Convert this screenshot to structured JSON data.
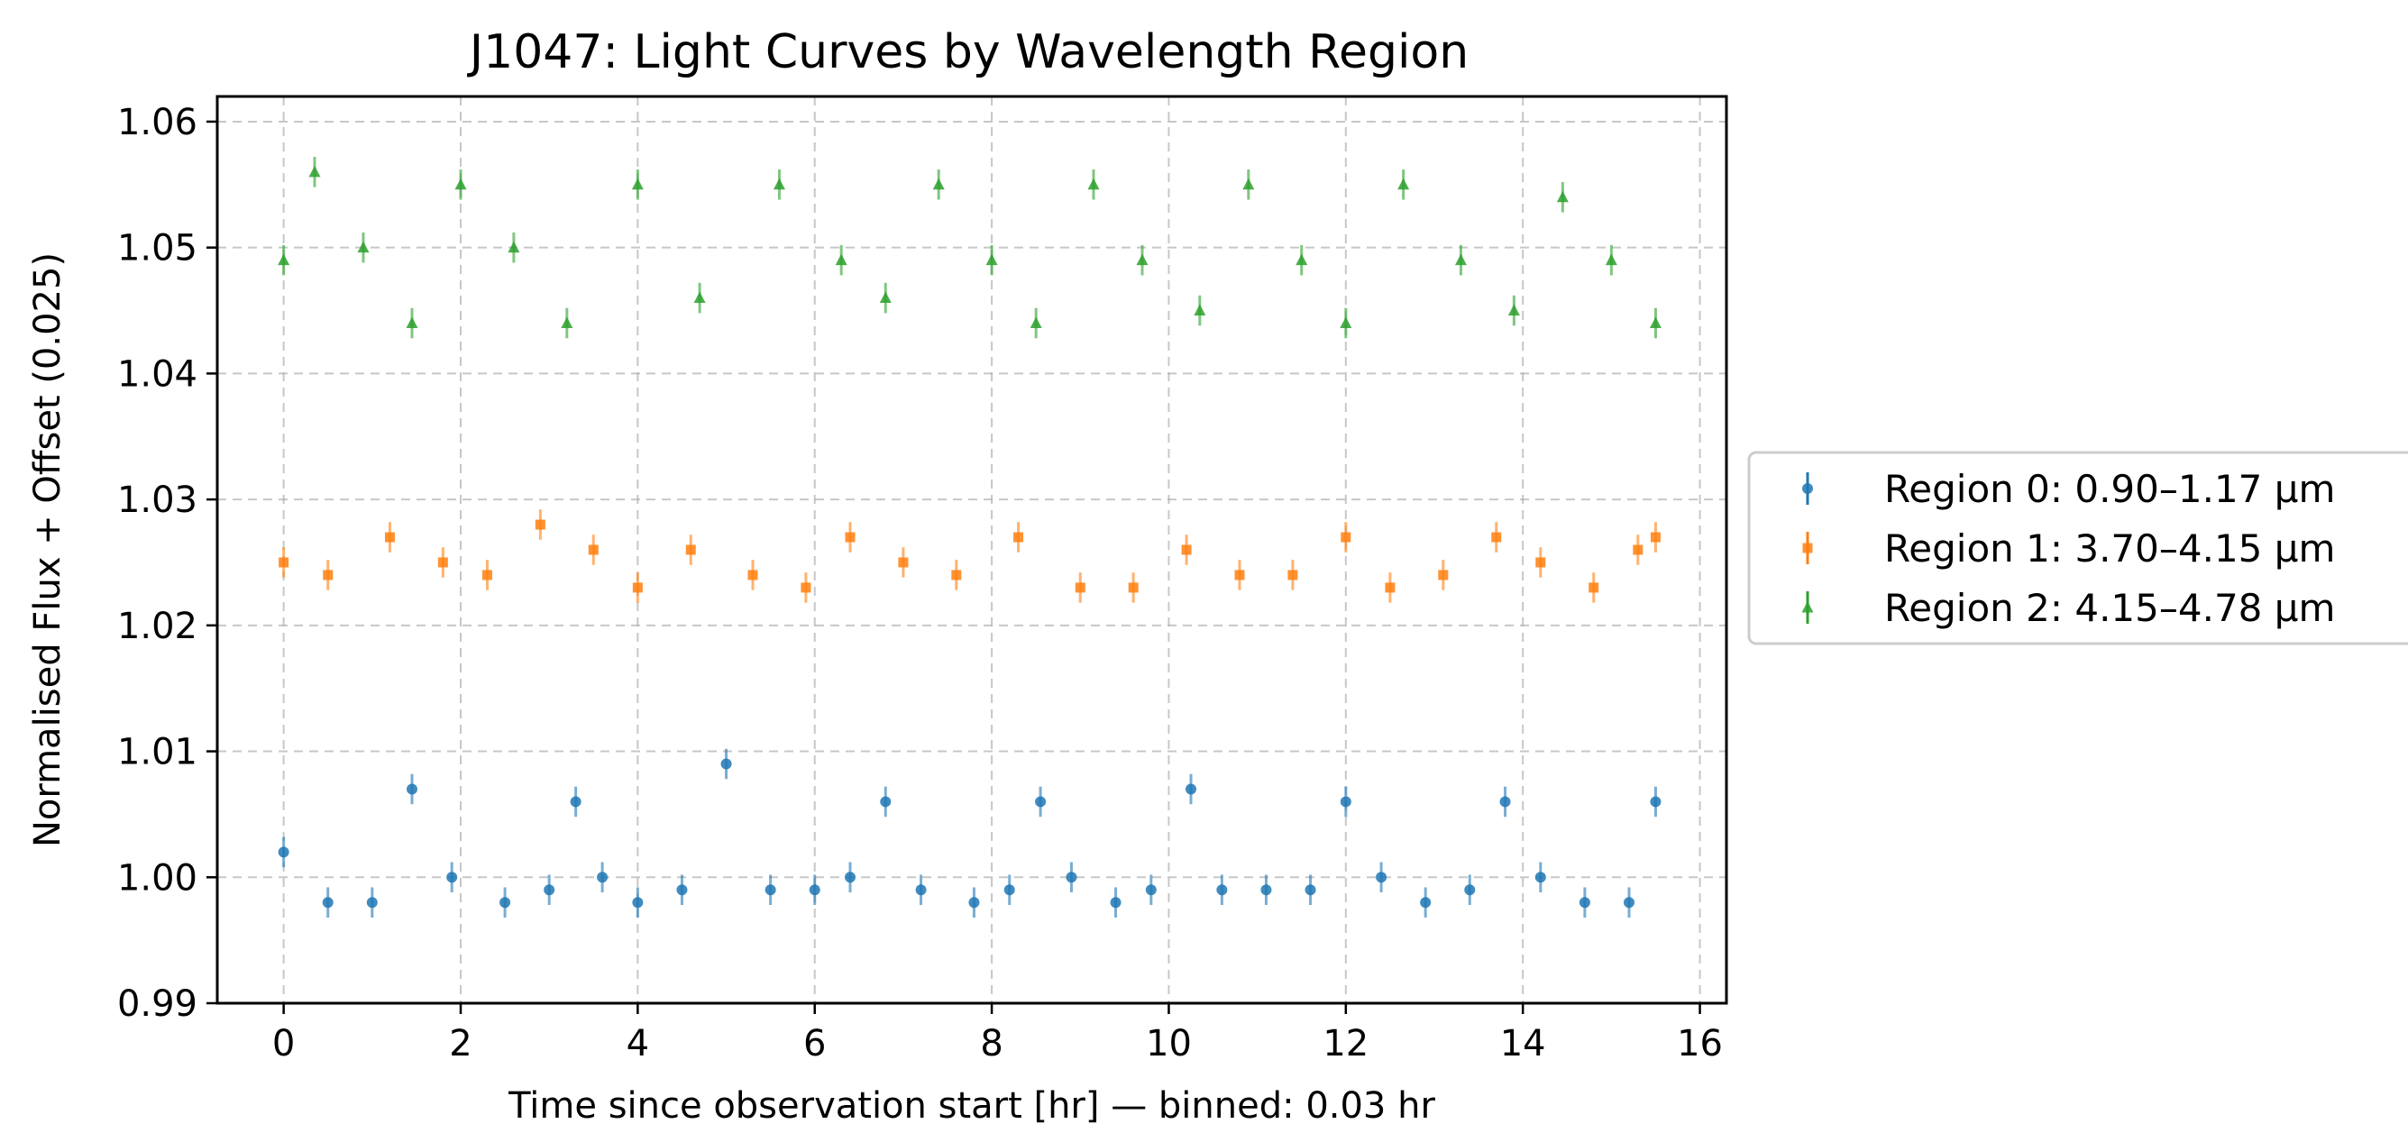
{
  "chart_data": {
    "type": "scatter",
    "title": "J1047: Light Curves by Wavelength Region",
    "xlabel": "Time since observation start [hr] — binned: 0.03 hr",
    "ylabel": "Normalised Flux + Offset (0.025)",
    "xlim": [
      -0.75,
      16.3
    ],
    "ylim": [
      0.99,
      1.062
    ],
    "xticks": [
      0,
      2,
      4,
      6,
      8,
      10,
      12,
      14,
      16
    ],
    "yticks": [
      0.99,
      1.0,
      1.01,
      1.02,
      1.03,
      1.04,
      1.05,
      1.06
    ],
    "xtick_labels": [
      "0",
      "2",
      "4",
      "6",
      "8",
      "10",
      "12",
      "14",
      "16"
    ],
    "ytick_labels": [
      "0.99",
      "1.00",
      "1.01",
      "1.02",
      "1.03",
      "1.04",
      "1.05",
      "1.06"
    ],
    "grid": true,
    "legend_position": "outside-right",
    "bin_hr": 0.03,
    "series": [
      {
        "name": "Region 0: 0.90–1.17 μm",
        "marker": "circle",
        "color": "#1f77b4",
        "x": [
          0.0,
          0.5,
          1.0,
          1.45,
          1.9,
          2.5,
          3.0,
          3.3,
          3.6,
          4.0,
          4.5,
          5.0,
          5.5,
          6.0,
          6.4,
          6.8,
          7.2,
          7.8,
          8.2,
          8.55,
          8.9,
          9.4,
          9.8,
          10.25,
          10.6,
          11.1,
          11.6,
          12.0,
          12.4,
          12.9,
          13.4,
          13.8,
          14.2,
          14.7,
          15.2,
          15.5
        ],
        "y": [
          1.002,
          0.998,
          0.998,
          1.007,
          1.0,
          0.998,
          0.999,
          1.006,
          1.0,
          0.998,
          0.999,
          1.009,
          0.999,
          0.999,
          1.0,
          1.006,
          0.999,
          0.998,
          0.999,
          1.006,
          1.0,
          0.998,
          0.999,
          1.007,
          0.999,
          0.999,
          0.999,
          1.006,
          1.0,
          0.998,
          0.999,
          1.006,
          1.0,
          0.998,
          0.998,
          1.006
        ]
      },
      {
        "name": "Region 1: 3.70–4.15 μm",
        "marker": "square",
        "color": "#ff7f0e",
        "x": [
          0.0,
          0.5,
          1.2,
          1.8,
          2.3,
          2.9,
          3.5,
          4.0,
          4.6,
          5.3,
          5.9,
          6.4,
          7.0,
          7.6,
          8.3,
          9.0,
          9.6,
          10.2,
          10.8,
          11.4,
          12.0,
          12.5,
          13.1,
          13.7,
          14.2,
          14.8,
          15.3,
          15.5
        ],
        "y": [
          1.025,
          1.024,
          1.027,
          1.025,
          1.024,
          1.028,
          1.026,
          1.023,
          1.026,
          1.024,
          1.023,
          1.027,
          1.025,
          1.024,
          1.027,
          1.023,
          1.023,
          1.026,
          1.024,
          1.024,
          1.027,
          1.023,
          1.024,
          1.027,
          1.025,
          1.023,
          1.026,
          1.027
        ]
      },
      {
        "name": "Region 2: 4.15–4.78 μm",
        "marker": "triangle",
        "color": "#2ca02c",
        "x": [
          0.0,
          0.35,
          0.9,
          1.45,
          2.0,
          2.6,
          3.2,
          4.0,
          4.7,
          5.6,
          6.3,
          6.8,
          7.4,
          8.0,
          8.5,
          9.15,
          9.7,
          10.35,
          10.9,
          11.5,
          12.0,
          12.65,
          13.3,
          13.9,
          14.45,
          15.0,
          15.5
        ],
        "y": [
          1.049,
          1.056,
          1.05,
          1.044,
          1.055,
          1.05,
          1.044,
          1.055,
          1.046,
          1.055,
          1.049,
          1.046,
          1.055,
          1.049,
          1.044,
          1.055,
          1.049,
          1.045,
          1.055,
          1.049,
          1.044,
          1.055,
          1.049,
          1.045,
          1.054,
          1.049,
          1.044
        ]
      }
    ]
  }
}
